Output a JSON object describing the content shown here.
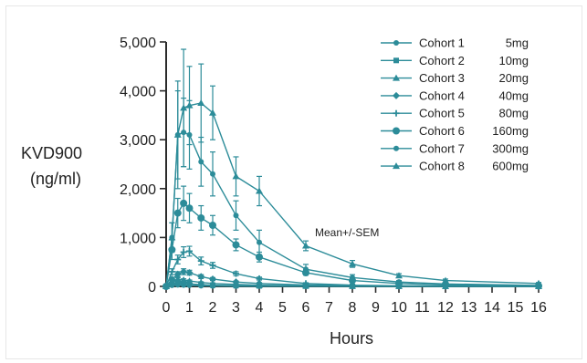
{
  "chart_data": {
    "type": "line",
    "ylabel_line1": "KVD900",
    "ylabel_line2": "(ng/ml)",
    "xlabel": "Hours",
    "xlim": [
      0,
      16
    ],
    "ylim": [
      0,
      5000
    ],
    "x_ticks": [
      0,
      1,
      2,
      3,
      4,
      5,
      6,
      7,
      8,
      9,
      10,
      11,
      12,
      13,
      14,
      15,
      16
    ],
    "y_ticks": [
      0,
      1000,
      2000,
      3000,
      4000,
      5000
    ],
    "y_tick_labels": [
      "0",
      "1,000",
      "2,000",
      "3,000",
      "4,000",
      "5,000"
    ],
    "annotation": "Mean+/-SEM",
    "color": "#2c8c99",
    "legend_position": "top-right",
    "series": [
      {
        "name": "Cohort 1",
        "dose": "5mg",
        "marker": "circle",
        "points": [
          [
            0,
            0
          ],
          [
            0.25,
            20
          ],
          [
            0.5,
            30
          ],
          [
            0.75,
            25
          ],
          [
            1,
            20
          ],
          [
            1.5,
            12
          ],
          [
            2,
            8
          ],
          [
            3,
            4
          ],
          [
            4,
            2
          ],
          [
            6,
            1
          ],
          [
            8,
            0
          ],
          [
            10,
            0
          ],
          [
            12,
            0
          ],
          [
            16,
            0
          ]
        ],
        "sem": [
          0,
          5,
          8,
          6,
          5,
          3,
          2,
          1,
          1,
          0,
          0,
          0,
          0,
          0
        ]
      },
      {
        "name": "Cohort 2",
        "dose": "10mg",
        "marker": "square",
        "points": [
          [
            0,
            0
          ],
          [
            0.25,
            50
          ],
          [
            0.5,
            70
          ],
          [
            0.75,
            60
          ],
          [
            1,
            50
          ],
          [
            1.5,
            35
          ],
          [
            2,
            25
          ],
          [
            3,
            15
          ],
          [
            4,
            10
          ],
          [
            6,
            5
          ],
          [
            8,
            3
          ],
          [
            10,
            2
          ],
          [
            12,
            1
          ],
          [
            16,
            0
          ]
        ],
        "sem": [
          0,
          10,
          15,
          12,
          10,
          8,
          6,
          4,
          3,
          2,
          1,
          1,
          0,
          0
        ]
      },
      {
        "name": "Cohort 3",
        "dose": "20mg",
        "marker": "triangle",
        "points": [
          [
            0,
            0
          ],
          [
            0.25,
            100
          ],
          [
            0.5,
            150
          ],
          [
            0.75,
            130
          ],
          [
            1,
            110
          ],
          [
            1.5,
            80
          ],
          [
            2,
            60
          ],
          [
            3,
            40
          ],
          [
            4,
            25
          ],
          [
            6,
            12
          ],
          [
            8,
            6
          ],
          [
            10,
            4
          ],
          [
            12,
            2
          ],
          [
            16,
            1
          ]
        ],
        "sem": [
          0,
          20,
          30,
          25,
          20,
          15,
          10,
          8,
          5,
          3,
          2,
          1,
          1,
          0
        ]
      },
      {
        "name": "Cohort 4",
        "dose": "40mg",
        "marker": "diamond",
        "points": [
          [
            0,
            0
          ],
          [
            0.25,
            150
          ],
          [
            0.5,
            250
          ],
          [
            0.75,
            300
          ],
          [
            1,
            280
          ],
          [
            1.5,
            200
          ],
          [
            2,
            150
          ],
          [
            3,
            90
          ],
          [
            4,
            60
          ],
          [
            6,
            30
          ],
          [
            8,
            15
          ],
          [
            10,
            8
          ],
          [
            12,
            5
          ],
          [
            16,
            2
          ]
        ],
        "sem": [
          0,
          30,
          50,
          60,
          50,
          40,
          30,
          20,
          15,
          8,
          5,
          3,
          2,
          1
        ]
      },
      {
        "name": "Cohort 5",
        "dose": "80mg",
        "marker": "plus",
        "points": [
          [
            0,
            0
          ],
          [
            0.25,
            300
          ],
          [
            0.5,
            550
          ],
          [
            0.75,
            700
          ],
          [
            1,
            720
          ],
          [
            1.5,
            520
          ],
          [
            2,
            430
          ],
          [
            3,
            260
          ],
          [
            4,
            160
          ],
          [
            6,
            60
          ],
          [
            8,
            25
          ],
          [
            10,
            12
          ],
          [
            12,
            6
          ],
          [
            16,
            2
          ]
        ],
        "sem": [
          0,
          60,
          90,
          110,
          100,
          80,
          60,
          40,
          30,
          15,
          8,
          4,
          3,
          1
        ]
      },
      {
        "name": "Cohort 6",
        "dose": "160mg",
        "marker": "circle-large",
        "points": [
          [
            0,
            0
          ],
          [
            0.25,
            750
          ],
          [
            0.5,
            1500
          ],
          [
            0.75,
            1700
          ],
          [
            1,
            1600
          ],
          [
            1.5,
            1400
          ],
          [
            2,
            1250
          ],
          [
            3,
            850
          ],
          [
            4,
            600
          ],
          [
            6,
            280
          ],
          [
            8,
            120
          ],
          [
            10,
            60
          ],
          [
            12,
            30
          ],
          [
            16,
            10
          ]
        ],
        "sem": [
          0,
          200,
          300,
          350,
          300,
          250,
          200,
          120,
          100,
          50,
          30,
          15,
          10,
          5
        ]
      },
      {
        "name": "Cohort 7",
        "dose": "300mg",
        "marker": "circle",
        "points": [
          [
            0,
            0
          ],
          [
            0.25,
            1000
          ],
          [
            0.5,
            3100
          ],
          [
            0.75,
            3150
          ],
          [
            1,
            3100
          ],
          [
            1.5,
            2550
          ],
          [
            2,
            2300
          ],
          [
            3,
            1450
          ],
          [
            4,
            900
          ],
          [
            6,
            350
          ],
          [
            8,
            180
          ],
          [
            10,
            90
          ],
          [
            12,
            50
          ],
          [
            16,
            20
          ]
        ],
        "sem": [
          0,
          300,
          900,
          700,
          700,
          500,
          450,
          300,
          250,
          100,
          60,
          30,
          20,
          10
        ]
      },
      {
        "name": "Cohort 8",
        "dose": "600mg",
        "marker": "triangle",
        "points": [
          [
            0,
            0
          ],
          [
            0.25,
            1000
          ],
          [
            0.5,
            3100
          ],
          [
            0.75,
            3650
          ],
          [
            1,
            3700
          ],
          [
            1.5,
            3750
          ],
          [
            2,
            3550
          ],
          [
            3,
            2250
          ],
          [
            4,
            1950
          ],
          [
            6,
            830
          ],
          [
            8,
            460
          ],
          [
            10,
            220
          ],
          [
            12,
            120
          ],
          [
            16,
            60
          ]
        ],
        "sem": [
          0,
          300,
          1100,
          1200,
          800,
          800,
          550,
          400,
          300,
          100,
          70,
          40,
          30,
          20
        ]
      }
    ]
  }
}
